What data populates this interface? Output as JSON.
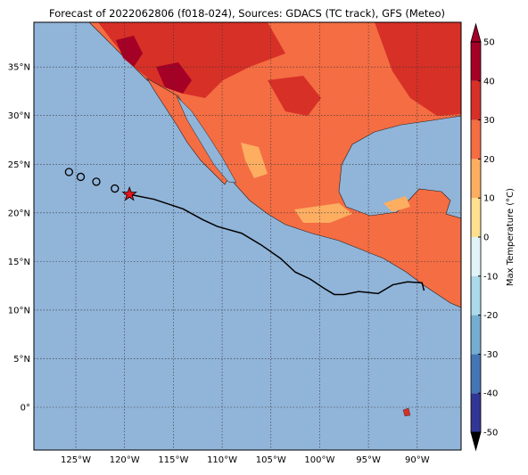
{
  "title": "Forecast of 2022062806 (f018-024), Sources: GDACS (TC track), GFS (Meteo)",
  "map": {
    "xlim": [
      -129.3,
      -85.5
    ],
    "ylim": [
      -4.4,
      39.6
    ],
    "xticks": [
      {
        "value": -125,
        "label": "125°W"
      },
      {
        "value": -120,
        "label": "120°W"
      },
      {
        "value": -115,
        "label": "115°W"
      },
      {
        "value": -110,
        "label": "110°W"
      },
      {
        "value": -105,
        "label": "105°W"
      },
      {
        "value": -100,
        "label": "100°W"
      },
      {
        "value": -95,
        "label": "95°W"
      },
      {
        "value": -90,
        "label": "90°W"
      }
    ],
    "yticks": [
      {
        "value": 0,
        "label": "0°"
      },
      {
        "value": 5,
        "label": "5°N"
      },
      {
        "value": 10,
        "label": "10°N"
      },
      {
        "value": 15,
        "label": "15°N"
      },
      {
        "value": 20,
        "label": "20°N"
      },
      {
        "value": 25,
        "label": "25°N"
      },
      {
        "value": 30,
        "label": "30°N"
      },
      {
        "value": 35,
        "label": "35°N"
      }
    ],
    "grid": true,
    "ocean_color": "#91b4d9",
    "track": {
      "lon": [
        -119.5,
        -117,
        -114,
        -112,
        -110.5,
        -108,
        -106,
        -104,
        -102.5,
        -101,
        -99.5,
        -98.5,
        -97.5,
        -96,
        -94,
        -92.5,
        -91,
        -89.5,
        -89.3
      ],
      "lat": [
        21.9,
        21.4,
        20.4,
        19.3,
        18.6,
        17.9,
        16.7,
        15.3,
        13.9,
        13.2,
        12.2,
        11.6,
        11.6,
        11.9,
        11.7,
        12.6,
        12.9,
        12.8,
        12.0
      ]
    },
    "past_positions": {
      "lon": [
        -125.7,
        -124.5,
        -122.9,
        -121.0
      ],
      "lat": [
        24.2,
        23.7,
        23.2,
        22.5
      ]
    },
    "current_position": {
      "lon": -119.5,
      "lat": 21.9
    }
  },
  "colorbar": {
    "label": "Max Temperature (°C)",
    "ticks": [
      -50,
      -40,
      -30,
      -20,
      -10,
      0,
      10,
      20,
      30,
      40,
      50
    ],
    "colors": [
      "#313695",
      "#4575b4",
      "#74add1",
      "#abd9e9",
      "#e0f3f8",
      "#fee090",
      "#fdae61",
      "#f46d43",
      "#d73027",
      "#a50026"
    ]
  }
}
